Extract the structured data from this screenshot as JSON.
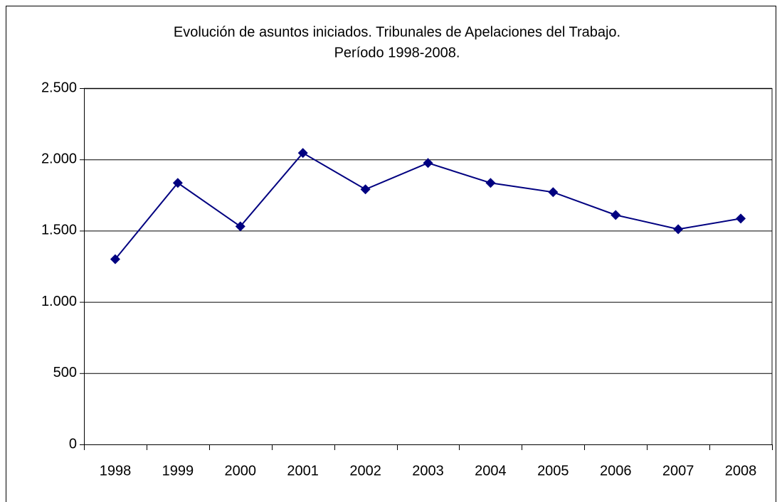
{
  "chart_data": {
    "type": "line",
    "title": [
      "Evolución de asuntos iniciados. Tribunales de Apelaciones del Trabajo.",
      "Período 1998-2008."
    ],
    "categories": [
      "1998",
      "1999",
      "2000",
      "2001",
      "2002",
      "2003",
      "2004",
      "2005",
      "2006",
      "2007",
      "2008"
    ],
    "series": [
      {
        "name": "Asuntos iniciados",
        "color": "#000080",
        "values": [
          1300,
          1835,
          1530,
          2045,
          1790,
          1975,
          1835,
          1770,
          1610,
          1510,
          1585
        ]
      }
    ],
    "ylim": [
      0,
      2500
    ],
    "yticks": [
      0,
      500,
      {
        "value": 1000,
        "label": "1.000"
      },
      {
        "value": 1500,
        "label": "1.500"
      },
      {
        "value": 2000,
        "label": "2.000"
      },
      {
        "value": 2500,
        "label": "2.500"
      }
    ],
    "grid": true
  }
}
